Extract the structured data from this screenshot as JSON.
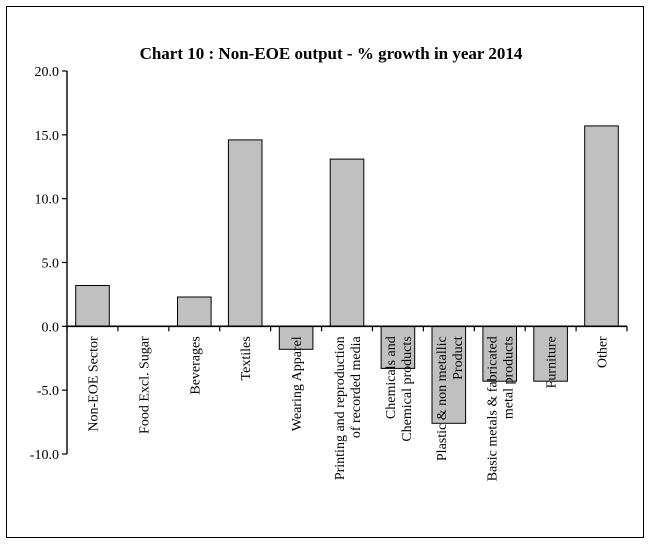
{
  "chart_data": {
    "type": "bar",
    "title": "Chart 10 : Non-EOE output - % growth in year 2014",
    "xlabel": "",
    "ylabel": "",
    "ylim": [
      -10,
      20
    ],
    "yticks": [
      "20.0",
      "15.0",
      "10.0",
      "5.0",
      "0.0",
      "-5.0",
      "-10.0"
    ],
    "grid": false,
    "legend": "none",
    "bar_color": "#c0c0c0",
    "categories": [
      [
        "Non-EOE Sector"
      ],
      [
        "Food Excl. Sugar"
      ],
      [
        "Beverages"
      ],
      [
        "Textiles"
      ],
      [
        "Wearing Apparel"
      ],
      [
        "Printing and reproduction",
        "of recorded media"
      ],
      [
        "Chemicals and",
        "Chemical products"
      ],
      [
        "Plastic & non metallic",
        "Product"
      ],
      [
        "Basic metals & fabricated",
        "metal products"
      ],
      [
        "Furniture"
      ],
      [
        "Other"
      ]
    ],
    "values": [
      3.2,
      0.0,
      2.3,
      14.6,
      -1.8,
      13.1,
      -3.3,
      -7.6,
      -4.3,
      -4.3,
      15.7
    ]
  }
}
